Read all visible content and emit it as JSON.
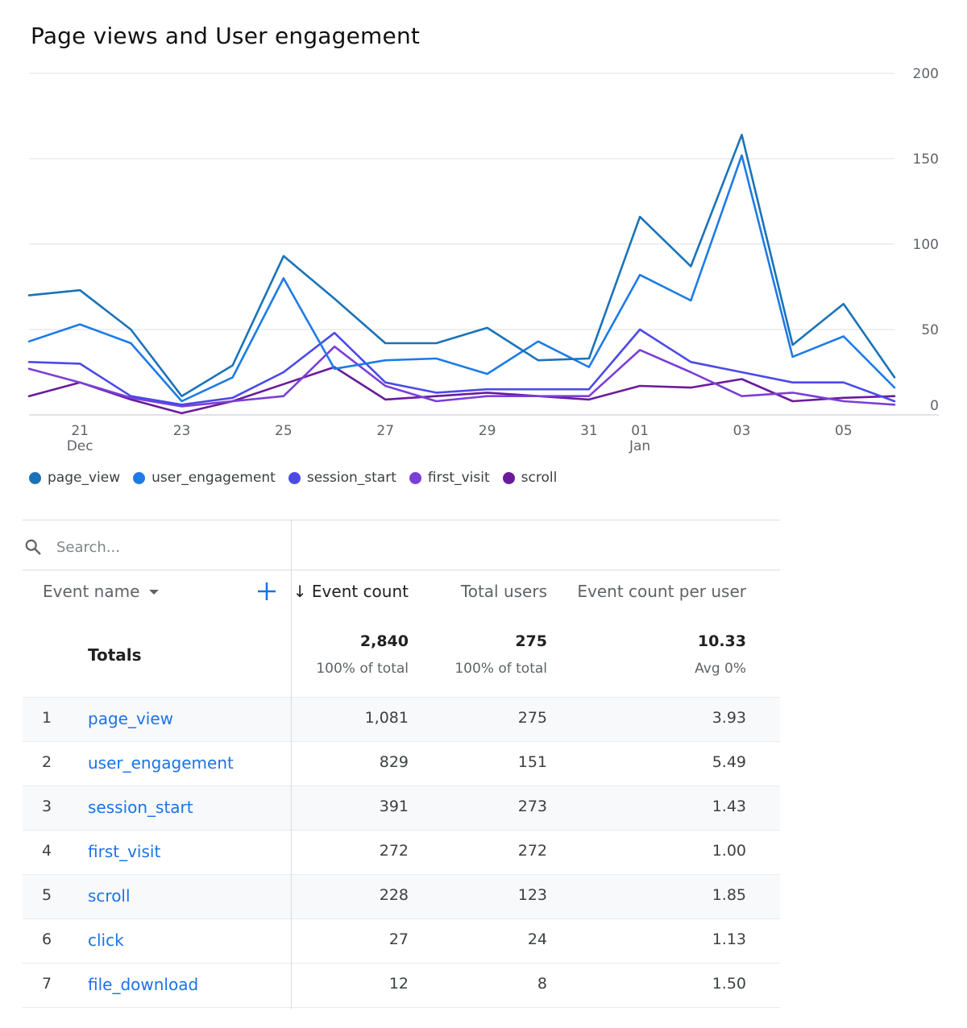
{
  "title": "Page views and User engagement",
  "chart_data": {
    "type": "line",
    "x": [
      "Dec 20",
      "Dec 21",
      "Dec 22",
      "Dec 23",
      "Dec 24",
      "Dec 25",
      "Dec 26",
      "Dec 27",
      "Dec 28",
      "Dec 29",
      "Dec 30",
      "Dec 31",
      "Jan 01",
      "Jan 02",
      "Jan 03",
      "Jan 04",
      "Jan 05",
      "Jan 06"
    ],
    "x_tick_labels": [
      {
        "index": 1,
        "label": "21",
        "sublabel": "Dec"
      },
      {
        "index": 3,
        "label": "23",
        "sublabel": ""
      },
      {
        "index": 5,
        "label": "25",
        "sublabel": ""
      },
      {
        "index": 7,
        "label": "27",
        "sublabel": ""
      },
      {
        "index": 9,
        "label": "29",
        "sublabel": ""
      },
      {
        "index": 11,
        "label": "31",
        "sublabel": ""
      },
      {
        "index": 12,
        "label": "01",
        "sublabel": "Jan"
      },
      {
        "index": 14,
        "label": "03",
        "sublabel": ""
      },
      {
        "index": 16,
        "label": "05",
        "sublabel": ""
      }
    ],
    "y_ticks": [
      0,
      50,
      100,
      150,
      200
    ],
    "ylim": [
      0,
      200
    ],
    "grid": true,
    "y_axis_side": "right",
    "legend_position": "bottom-left",
    "series": [
      {
        "name": "page_view",
        "color": "#1a73b8",
        "values": [
          70,
          73,
          50,
          11,
          29,
          93,
          68,
          42,
          42,
          51,
          32,
          33,
          116,
          87,
          164,
          41,
          65,
          22
        ]
      },
      {
        "name": "user_engagement",
        "color": "#1e7be6",
        "values": [
          43,
          53,
          42,
          8,
          22,
          80,
          27,
          32,
          33,
          24,
          43,
          28,
          82,
          67,
          152,
          34,
          46,
          16
        ]
      },
      {
        "name": "session_start",
        "color": "#4b4ae8",
        "values": [
          31,
          30,
          11,
          6,
          10,
          25,
          48,
          19,
          13,
          15,
          15,
          15,
          50,
          31,
          25,
          19,
          19,
          8
        ]
      },
      {
        "name": "first_visit",
        "color": "#7b3fd6",
        "values": [
          27,
          19,
          10,
          5,
          8,
          11,
          40,
          17,
          8,
          11,
          11,
          11,
          38,
          25,
          11,
          13,
          8,
          6
        ]
      },
      {
        "name": "scroll",
        "color": "#6a1b9a",
        "values": [
          11,
          19,
          9,
          1,
          8,
          18,
          28,
          9,
          11,
          13,
          11,
          9,
          17,
          16,
          21,
          8,
          10,
          11
        ]
      }
    ]
  },
  "legend": {
    "items": [
      {
        "label": "page_view",
        "color": "#1a73b8"
      },
      {
        "label": "user_engagement",
        "color": "#1e7be6"
      },
      {
        "label": "session_start",
        "color": "#4b4ae8"
      },
      {
        "label": "first_visit",
        "color": "#7b3fd6"
      },
      {
        "label": "scroll",
        "color": "#6a1b9a"
      }
    ]
  },
  "table": {
    "search_placeholder": "Search...",
    "headers": {
      "event_name": "Event name",
      "event_count": "↓ Event count",
      "total_users": "Total users",
      "event_count_per_user": "Event count per user"
    },
    "totals": {
      "label": "Totals",
      "event_count": "2,840",
      "event_count_sub": "100% of total",
      "total_users": "275",
      "total_users_sub": "100% of total",
      "per_user": "10.33",
      "per_user_sub": "Avg 0%"
    },
    "rows": [
      {
        "num": "1",
        "name": "page_view",
        "event_count": "1,081",
        "total_users": "275",
        "per_user": "3.93"
      },
      {
        "num": "2",
        "name": "user_engagement",
        "event_count": "829",
        "total_users": "151",
        "per_user": "5.49"
      },
      {
        "num": "3",
        "name": "session_start",
        "event_count": "391",
        "total_users": "273",
        "per_user": "1.43"
      },
      {
        "num": "4",
        "name": "first_visit",
        "event_count": "272",
        "total_users": "272",
        "per_user": "1.00"
      },
      {
        "num": "5",
        "name": "scroll",
        "event_count": "228",
        "total_users": "123",
        "per_user": "1.85"
      },
      {
        "num": "6",
        "name": "click",
        "event_count": "27",
        "total_users": "24",
        "per_user": "1.13"
      },
      {
        "num": "7",
        "name": "file_download",
        "event_count": "12",
        "total_users": "8",
        "per_user": "1.50"
      }
    ]
  }
}
